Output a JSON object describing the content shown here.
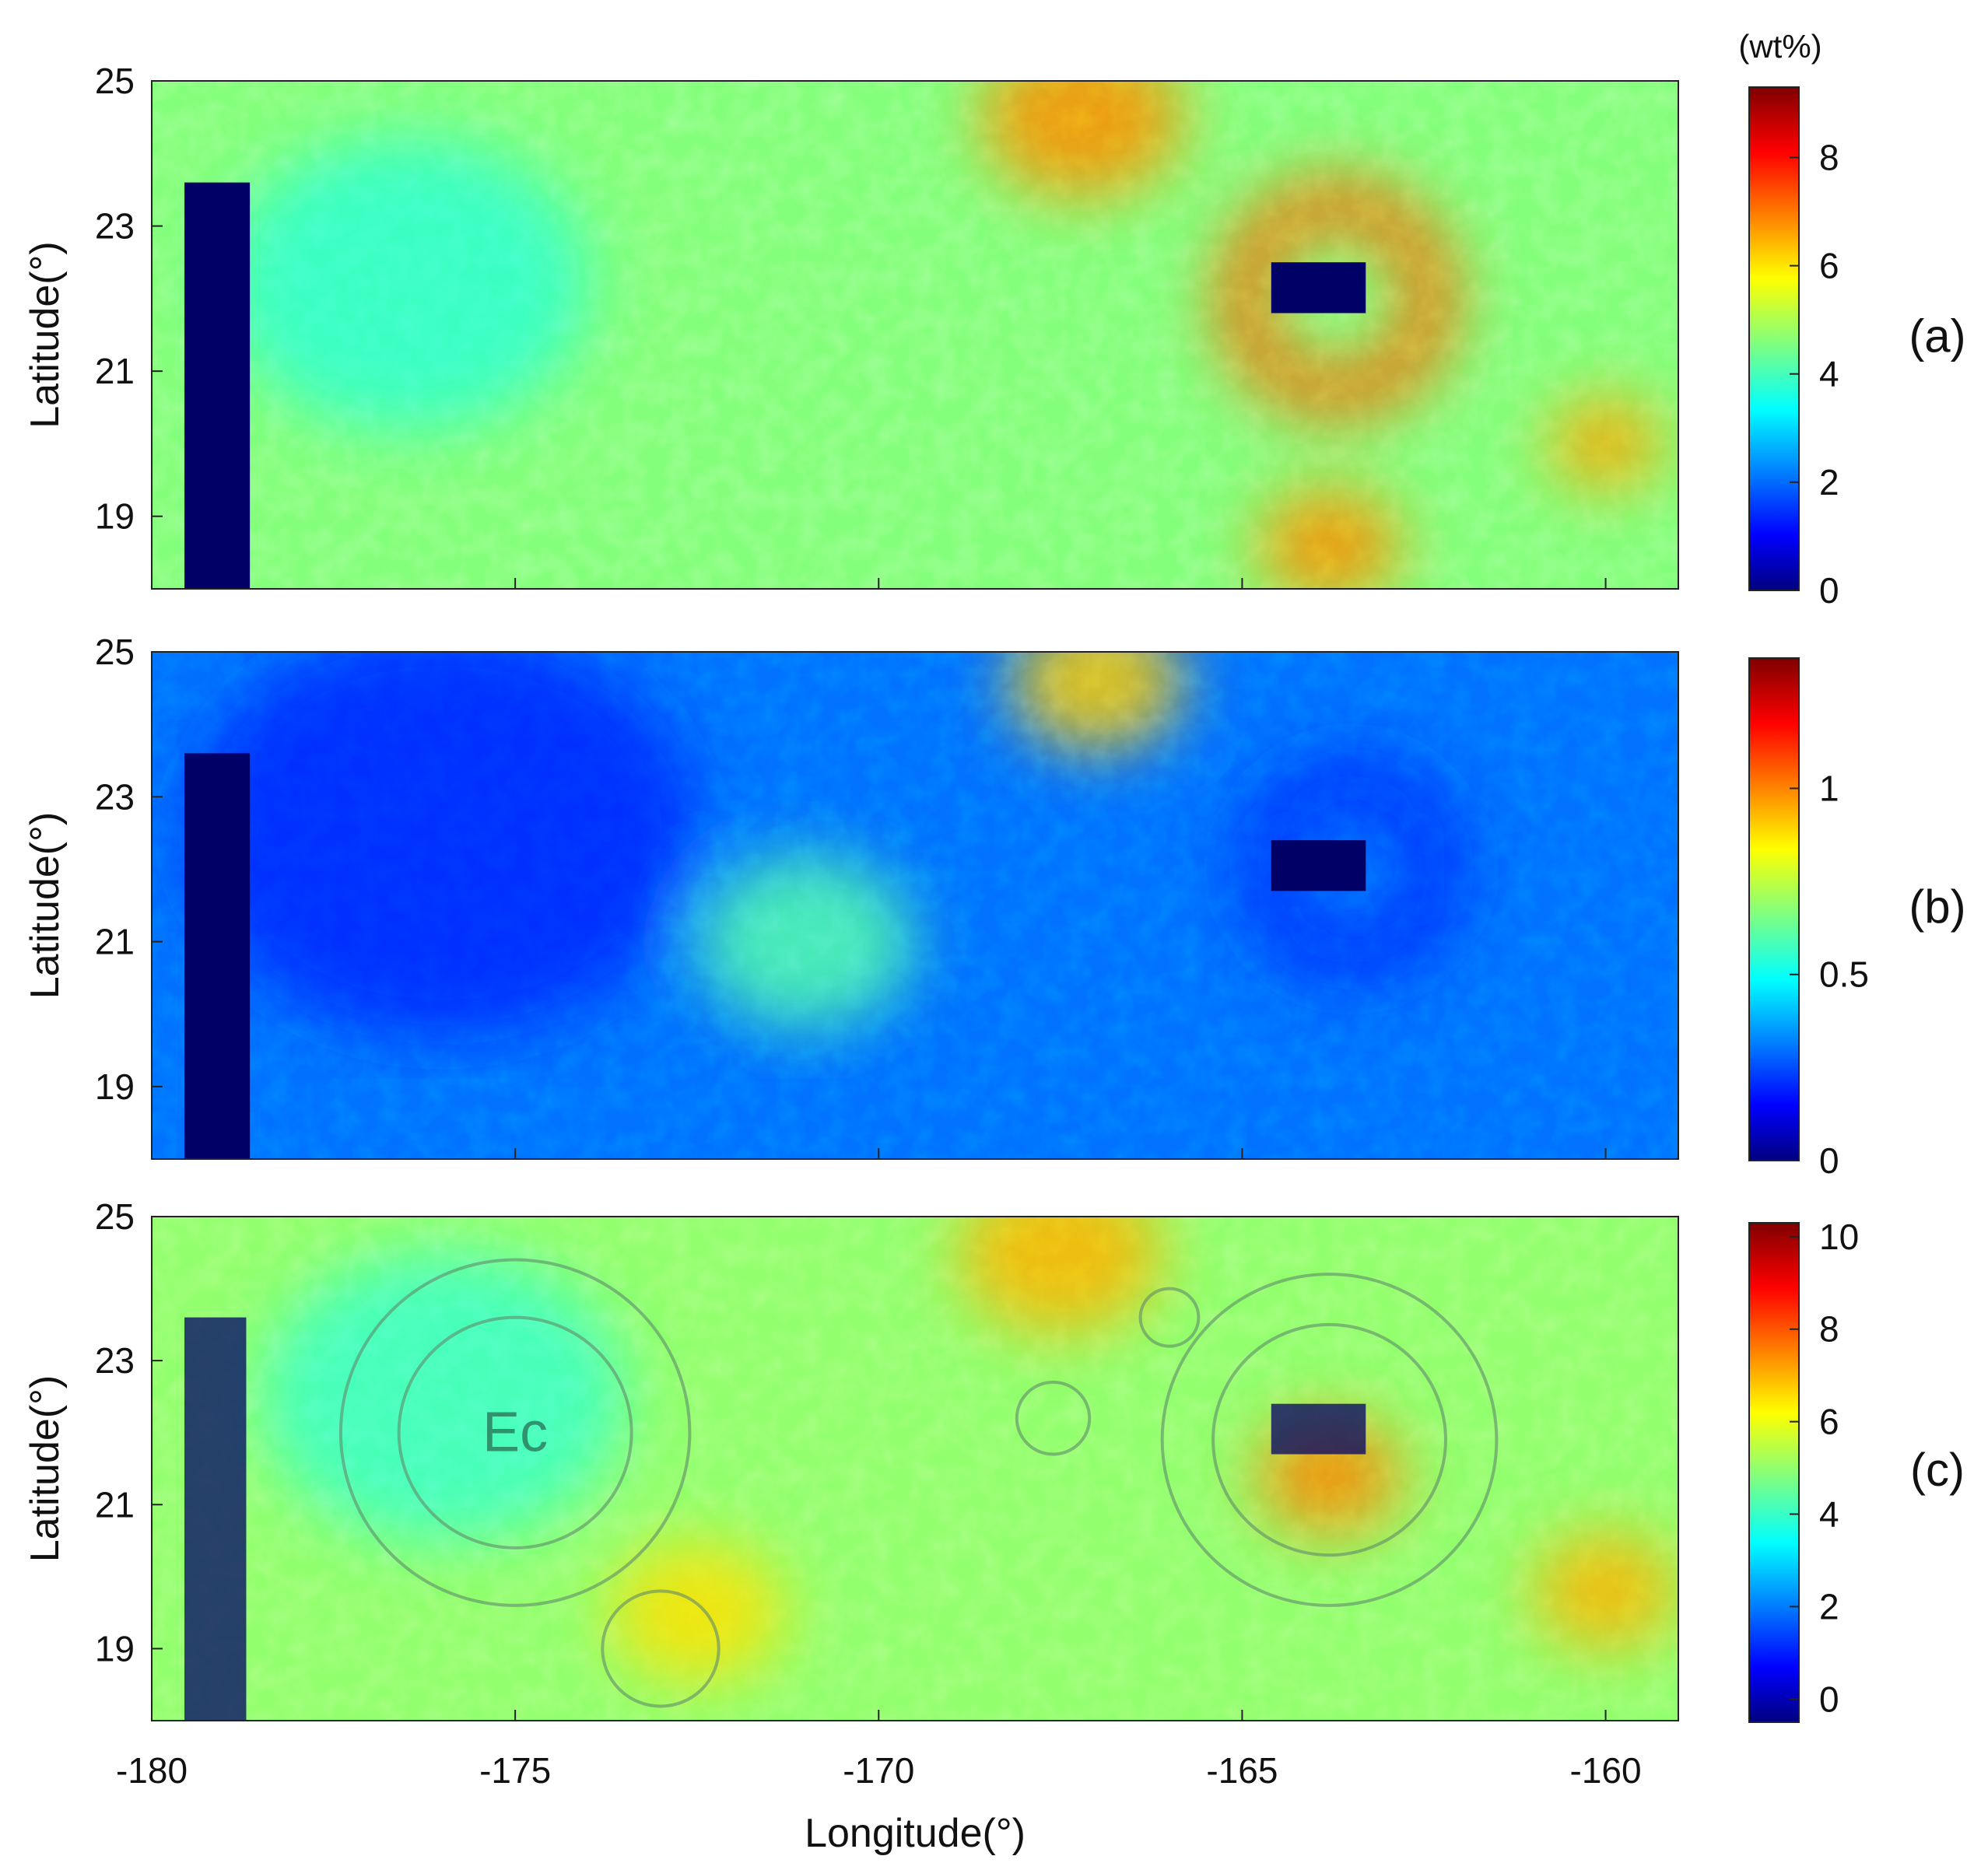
{
  "chart_data": {
    "type": "heatmap",
    "shared_x_axis": {
      "xlabel": "Longitude(°)",
      "xlim": [
        -180,
        -159
      ],
      "ticks": [
        -180,
        -175,
        -170,
        -165,
        -160
      ],
      "tick_labels": [
        "-180",
        "-175",
        "-170",
        "-165",
        "-160"
      ]
    },
    "panels": [
      {
        "id": "a",
        "tag": "(a)",
        "ylabel": "Latitude(°)",
        "ylim": [
          18,
          25
        ],
        "yticks": [
          19,
          21,
          23,
          25
        ],
        "ytick_labels": [
          "19",
          "21",
          "23",
          "25"
        ],
        "colorbar": {
          "unit": "(wt%)",
          "range": [
            0,
            9.3
          ],
          "ticks": [
            0,
            2,
            4,
            6,
            8
          ],
          "tick_labels": [
            "0",
            "2",
            "4",
            "6",
            "8"
          ],
          "colormap": "jet"
        },
        "background_value": 4.6,
        "no_data": [
          {
            "lon": [
              -179.55,
              -178.65
            ],
            "lat": [
              18.0,
              23.6
            ]
          },
          {
            "lon": [
              -164.6,
              -163.3
            ],
            "lat": [
              21.8,
              22.5
            ]
          }
        ],
        "features": [
          {
            "kind": "crater-ring",
            "lon": -163.7,
            "lat": 22.0,
            "radius_deg": 1.3,
            "value": 7.2
          },
          {
            "kind": "high-patch",
            "lon": -167.2,
            "lat": 24.5,
            "radius_deg": 1.4,
            "value": 6.8
          },
          {
            "kind": "high-patch",
            "lon": -163.8,
            "lat": 18.6,
            "radius_deg": 1.0,
            "value": 6.8
          },
          {
            "kind": "high-patch",
            "lon": -160.0,
            "lat": 20.0,
            "radius_deg": 0.8,
            "value": 6.6
          },
          {
            "kind": "low-patch",
            "lon": -176.5,
            "lat": 22.2,
            "radius_deg": 2.5,
            "value": 3.8
          }
        ]
      },
      {
        "id": "b",
        "tag": "(b)",
        "ylabel": "Latitude(°)",
        "ylim": [
          18,
          25
        ],
        "yticks": [
          19,
          21,
          23,
          25
        ],
        "ytick_labels": [
          "19",
          "21",
          "23",
          "25"
        ],
        "colorbar": {
          "unit": "",
          "range": [
            0,
            1.35
          ],
          "ticks": [
            0,
            0.5,
            1
          ],
          "tick_labels": [
            "0",
            "0.5",
            "1"
          ],
          "colormap": "jet"
        },
        "background_value": 0.3,
        "no_data": [
          {
            "lon": [
              -179.55,
              -178.65
            ],
            "lat": [
              18.0,
              23.6
            ]
          },
          {
            "lon": [
              -164.6,
              -163.3
            ],
            "lat": [
              21.7,
              22.4
            ]
          }
        ],
        "features": [
          {
            "kind": "low-region",
            "lon": -176.0,
            "lat": 22.5,
            "radius_deg": 3.5,
            "value": 0.2
          },
          {
            "kind": "high-patch",
            "lon": -167.0,
            "lat": 24.6,
            "radius_deg": 1.2,
            "value": 0.9
          },
          {
            "kind": "high-patch",
            "lon": -171.0,
            "lat": 21.0,
            "radius_deg": 1.5,
            "value": 0.6
          },
          {
            "kind": "crater-ring",
            "lon": -163.5,
            "lat": 22.0,
            "radius_deg": 1.2,
            "value": 0.2
          }
        ]
      },
      {
        "id": "c",
        "tag": "(c)",
        "ylabel": "Latitude(°)",
        "ylim": [
          18,
          25
        ],
        "yticks": [
          19,
          21,
          23,
          25
        ],
        "ytick_labels": [
          "19",
          "21",
          "23",
          "25"
        ],
        "colorbar": {
          "unit": "",
          "range": [
            -0.5,
            10.3
          ],
          "ticks": [
            0,
            2,
            4,
            6,
            8,
            10
          ],
          "tick_labels": [
            "0",
            "2",
            "4",
            "6",
            "8",
            "10"
          ],
          "colormap": "jet"
        },
        "background_value": 5.0,
        "overlay_text": "Ec",
        "overlay_text_position": {
          "lon": -175.0,
          "lat": 22.0
        },
        "no_data": [
          {
            "lon": [
              -179.55,
              -178.7
            ],
            "lat": [
              18.0,
              23.6
            ]
          },
          {
            "lon": [
              -164.6,
              -163.3
            ],
            "lat": [
              21.7,
              22.4
            ]
          }
        ],
        "geologic_contours": [
          {
            "lon": -175.0,
            "lat": 22.0,
            "radius_deg": 1.6
          },
          {
            "lon": -175.0,
            "lat": 22.0,
            "radius_deg": 2.4
          },
          {
            "lon": -163.8,
            "lat": 21.9,
            "radius_deg": 1.6
          },
          {
            "lon": -163.8,
            "lat": 21.9,
            "radius_deg": 2.3
          },
          {
            "lon": -173.0,
            "lat": 19.0,
            "radius_deg": 0.8
          },
          {
            "lon": -167.6,
            "lat": 22.2,
            "radius_deg": 0.5
          },
          {
            "lon": -166.0,
            "lat": 23.6,
            "radius_deg": 0.4
          }
        ],
        "features": [
          {
            "kind": "high-patch",
            "lon": -167.5,
            "lat": 24.5,
            "radius_deg": 1.4,
            "value": 7.0
          },
          {
            "kind": "high-patch",
            "lon": -163.8,
            "lat": 21.4,
            "radius_deg": 1.0,
            "value": 7.5
          },
          {
            "kind": "high-patch",
            "lon": -160.0,
            "lat": 19.8,
            "radius_deg": 1.0,
            "value": 7.0
          },
          {
            "kind": "high-patch",
            "lon": -172.5,
            "lat": 19.5,
            "radius_deg": 1.2,
            "value": 6.5
          },
          {
            "kind": "low-patch",
            "lon": -176.0,
            "lat": 22.5,
            "radius_deg": 2.5,
            "value": 4.0
          }
        ]
      }
    ]
  }
}
